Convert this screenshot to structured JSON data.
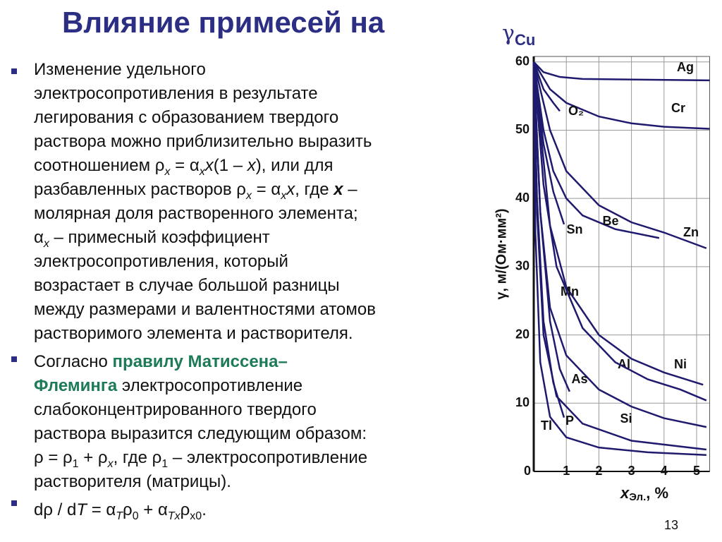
{
  "title": {
    "text": "Влияние примесей на",
    "symbol": "γ",
    "subscript": "Cu"
  },
  "bullets": [
    [
      [
        "Изменение удельного"
      ],
      [
        "электросопротивления в результате"
      ],
      [
        "легирования с образованием твердого"
      ],
      [
        "раствора можно приблизительно выразить"
      ],
      [
        "соотношением ρ",
        "x",
        " = α",
        "x",
        "x",
        "(1 – ",
        "x",
        "), или для"
      ],
      [
        "разбавленных растворов ρ",
        "x",
        " = α",
        "x",
        "x",
        ", где ",
        "x",
        " –"
      ],
      [
        "молярная доля растворенного элемента;"
      ],
      [
        "α",
        "x",
        " – примесный коэффициент"
      ],
      [
        "электросопротивления, который"
      ],
      [
        "возрастает в случае большой разницы"
      ],
      [
        "между размерами и валентностями атомов"
      ],
      [
        "растворимого элемента и растворителя."
      ]
    ],
    [
      [
        "Согласно ",
        "правилу Матиссена–"
      ],
      [
        "Флеминга",
        " электросопротивление"
      ],
      [
        "слабоконцентрированного твердого"
      ],
      [
        "раствора выразится следующим образом:"
      ],
      [
        "ρ = ρ",
        "1",
        " + ρ",
        "x",
        ", где ρ",
        "1",
        " – электросопротивление"
      ],
      [
        "растворителя (матрицы)."
      ]
    ],
    [
      [
        "dρ / d",
        "T",
        " = α",
        "T",
        "ρ",
        "0",
        " + α",
        "Tx",
        "ρ",
        "x0",
        "."
      ]
    ]
  ],
  "page_number": "13",
  "chart_data": {
    "type": "line",
    "ylabel": "γ, м/(Ом·мм²)",
    "xlabel": {
      "symbol": "x",
      "subscript": "Эл.",
      "unit": ", %"
    },
    "xlim": [
      0,
      5.4
    ],
    "ylim": [
      0,
      60.8
    ],
    "xticks": [
      0,
      1,
      2,
      3,
      4,
      5
    ],
    "yticks": [
      10,
      20,
      30,
      40,
      50,
      60
    ],
    "grid": true,
    "series": [
      {
        "name": "Ag",
        "color": "#1f1a6e",
        "x": [
          0,
          0.3,
          0.8,
          1.5,
          5.4
        ],
        "values": [
          60,
          58.5,
          57.8,
          57.5,
          57.3
        ]
      },
      {
        "name": "Cr",
        "color": "#1f1a6e",
        "x": [
          0,
          0.5,
          1,
          2,
          3,
          4,
          5.4
        ],
        "values": [
          60,
          56,
          54,
          52,
          51,
          50.5,
          50.2
        ]
      },
      {
        "name": "O₂",
        "color": "#1f1a6e",
        "x": [
          0,
          0.3,
          0.6,
          0.8
        ],
        "values": [
          60,
          56,
          54,
          52.8
        ]
      },
      {
        "name": "Be",
        "color": "#1f1a6e",
        "x": [
          0,
          0.3,
          0.6,
          1,
          1.5,
          2.5,
          3.85
        ],
        "values": [
          60,
          50,
          44,
          40,
          37.5,
          35.5,
          34.2
        ]
      },
      {
        "name": "Zn",
        "color": "#1f1a6e",
        "x": [
          0,
          0.5,
          1,
          2,
          3,
          4,
          5.3
        ],
        "values": [
          60,
          50,
          44,
          39,
          36.5,
          35,
          32.7
        ]
      },
      {
        "name": "Sn",
        "color": "#1f1a6e",
        "x": [
          0,
          0.3,
          0.6,
          0.93
        ],
        "values": [
          60,
          48,
          41,
          36.2
        ]
      },
      {
        "name": "Mn",
        "color": "#1f1a6e",
        "x": [
          0,
          0.5,
          1,
          2,
          3,
          4,
          5.2
        ],
        "values": [
          60,
          36,
          27,
          20,
          16.5,
          14.5,
          12.7
        ]
      },
      {
        "name": "Al",
        "color": "#1f1a6e",
        "x": [
          0,
          0.2,
          0.5,
          1,
          2,
          3,
          4,
          5.3
        ],
        "values": [
          60,
          38,
          24,
          17,
          12,
          9.5,
          7.8,
          6.5
        ]
      },
      {
        "name": "Ni",
        "color": "#1f1a6e",
        "x": [
          0,
          0.3,
          0.7,
          1.5,
          2.5,
          3.5,
          4.5,
          5.3
        ],
        "values": [
          60,
          42,
          30,
          21,
          16,
          13.5,
          12,
          10.4
        ]
      },
      {
        "name": "As",
        "color": "#1f1a6e",
        "x": [
          0,
          0.2,
          0.5,
          0.8,
          1.1
        ],
        "values": [
          60,
          38,
          22,
          15,
          11.7
        ]
      },
      {
        "name": "Si",
        "color": "#1f1a6e",
        "x": [
          0,
          0.1,
          0.3,
          0.7,
          1.5,
          3,
          5.3
        ],
        "values": [
          60,
          38,
          20,
          11,
          7,
          4.5,
          3.2
        ]
      },
      {
        "name": "P",
        "color": "#1f1a6e",
        "x": [
          0,
          0.1,
          0.3,
          0.6,
          0.93
        ],
        "values": [
          60,
          40,
          22,
          13,
          7.9
        ]
      },
      {
        "name": "Tl",
        "color": "#1f1a6e",
        "x": [
          0,
          0.05,
          0.2,
          0.5,
          1,
          2,
          3.5,
          5.3
        ],
        "values": [
          60,
          35,
          16,
          8,
          5,
          3.5,
          2.8,
          2.4
        ]
      }
    ]
  }
}
